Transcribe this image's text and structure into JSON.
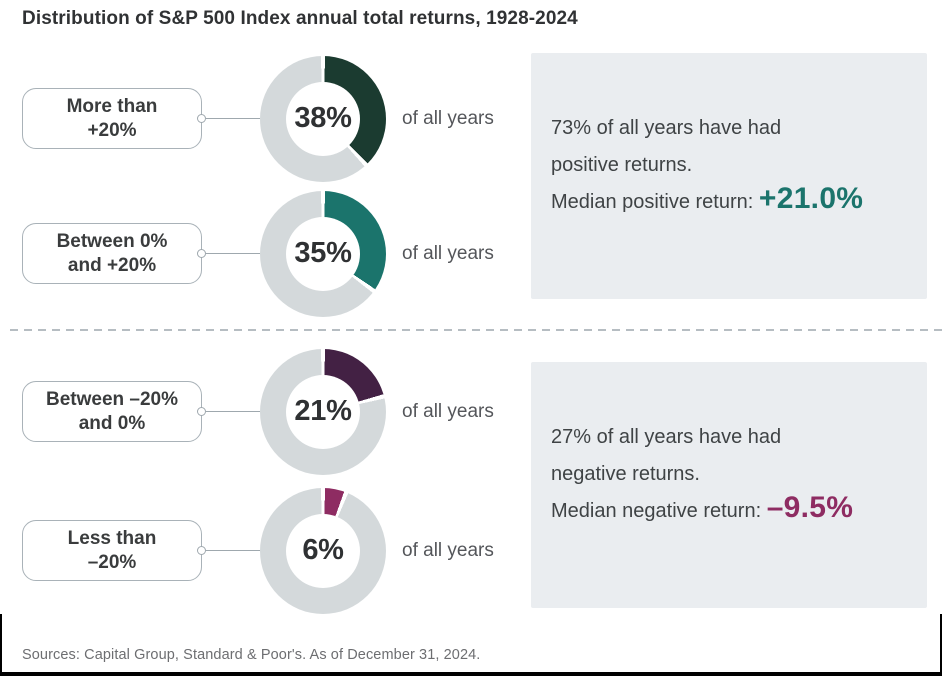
{
  "page": {
    "title": "Distribution of S&P 500 Index annual total returns, 1928-2024",
    "footer": "Sources: Capital Group, Standard & Poor's. As of December 31, 2024."
  },
  "chart_data": {
    "type": "pie",
    "title": "Distribution of S&P 500 Index annual total returns, 1928-2024",
    "legend_position": "left-labels",
    "ring_color": "#D4D9DB",
    "rows": [
      {
        "label": "More than +20%",
        "label_line1": "More than",
        "label_line2": "+20%",
        "value_pct": 38,
        "value_label": "38%",
        "suffix": "of all years",
        "color": "#1B3B30",
        "group": "positive"
      },
      {
        "label": "Between 0% and +20%",
        "label_line1": "Between 0%",
        "label_line2": "and +20%",
        "value_pct": 35,
        "value_label": "35%",
        "suffix": "of all years",
        "color": "#1B746C",
        "group": "positive"
      },
      {
        "label": "Between –20% and 0%",
        "label_line1": "Between –20%",
        "label_line2": "and 0%",
        "value_pct": 21,
        "value_label": "21%",
        "suffix": "of all years",
        "color": "#432144",
        "group": "negative"
      },
      {
        "label": "Less than –20%",
        "label_line1": "Less than",
        "label_line2": "–20%",
        "value_pct": 6,
        "value_label": "6%",
        "suffix": "of all years",
        "color": "#8E2C62",
        "group": "negative"
      }
    ],
    "summaries": {
      "positive": {
        "line1": "73% of all years have had",
        "line2": "positive returns.",
        "line3_prefix": "Median positive return: ",
        "value": "+21.0%",
        "value_color": "#1B746C",
        "total_pct": 73,
        "median_return_pct": 21.0
      },
      "negative": {
        "line1": "27% of all years have had",
        "line2": "negative returns.",
        "line3_prefix": "Median negative return: ",
        "value": "–9.5%",
        "value_color": "#8E2C62",
        "total_pct": 27,
        "median_return_pct": -9.5
      }
    }
  }
}
